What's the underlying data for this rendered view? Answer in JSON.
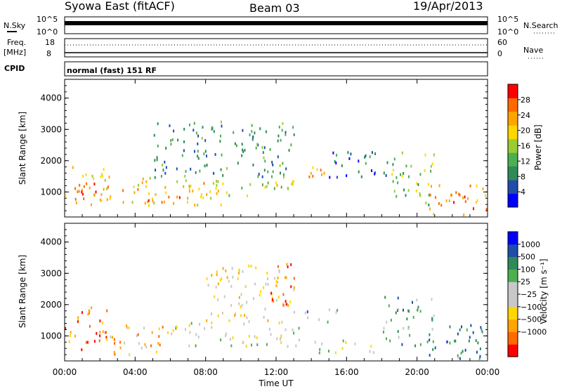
{
  "header": {
    "title": "Syowa East (fitACF)",
    "beam": "Beam 03",
    "date": "19/Apr/2013"
  },
  "panels": {
    "nsky": {
      "label": "N.Sky",
      "left_ticks": [
        "10^5",
        "10^0"
      ],
      "right_ticks": [
        "10^5",
        "10^0"
      ],
      "right_label": "N.Search"
    },
    "freq": {
      "label_line1": "Freq.",
      "label_line2": "[MHz]",
      "left_ticks": [
        "18",
        "8"
      ],
      "right_ticks": [
        "60",
        "0"
      ],
      "right_label": "Nave"
    },
    "cpid": {
      "label": "CPID",
      "text": "normal (fast) 151 RF"
    }
  },
  "colors": {
    "power_scale": [
      "#0000ff",
      "#1f4ea8",
      "#2e8b57",
      "#4caf50",
      "#9acd32",
      "#ffd700",
      "#ffa500",
      "#ff6a00",
      "#ff0000"
    ],
    "velocity_scale": [
      "#ff0000",
      "#ff6a00",
      "#ffa500",
      "#ffd700",
      "#c8c8c8",
      "#c8c8c8",
      "#4caf50",
      "#2e8b57",
      "#1f4ea8",
      "#0000ff"
    ]
  },
  "chart_data": [
    {
      "type": "heatmap",
      "name": "power",
      "ylabel": "Slant Range [km]",
      "yticks": [
        1000,
        2000,
        3000,
        4000
      ],
      "ylim": [
        200,
        4600
      ],
      "xticks": [
        "00:00",
        "04:00",
        "08:00",
        "12:00",
        "16:00",
        "20:00",
        "00:00"
      ],
      "colorbar": {
        "label": "Power [dB]",
        "ticks": [
          4,
          8,
          12,
          16,
          20,
          24,
          28
        ],
        "range": [
          0,
          32
        ]
      },
      "regions": [
        {
          "t0": 0.0,
          "t1": 2.5,
          "r0": 500,
          "r1": 2000,
          "level": 0.7
        },
        {
          "t0": 0.7,
          "t1": 1.9,
          "r0": 700,
          "r1": 1300,
          "level": 0.95
        },
        {
          "t0": 2.5,
          "t1": 9.0,
          "r0": 600,
          "r1": 1500,
          "level": 0.62
        },
        {
          "t0": 4.0,
          "t1": 7.0,
          "r0": 700,
          "r1": 900,
          "level": 0.9
        },
        {
          "t0": 8.0,
          "t1": 13.0,
          "r0": 900,
          "r1": 1500,
          "level": 0.5
        },
        {
          "t0": 5.0,
          "t1": 13.0,
          "r0": 1500,
          "r1": 3300,
          "level": 0.3
        },
        {
          "t0": 13.5,
          "t1": 15.5,
          "r0": 1400,
          "r1": 1900,
          "level": 0.8
        },
        {
          "t0": 15.0,
          "t1": 18.5,
          "r0": 1500,
          "r1": 2400,
          "level": 0.25
        },
        {
          "t0": 18.5,
          "t1": 21.0,
          "r0": 600,
          "r1": 2300,
          "level": 0.45
        },
        {
          "t0": 20.5,
          "t1": 24.0,
          "r0": 300,
          "r1": 1300,
          "level": 0.75
        }
      ]
    },
    {
      "type": "heatmap",
      "name": "velocity",
      "ylabel": "Slant Range [km]",
      "yticks": [
        1000,
        2000,
        3000,
        4000
      ],
      "ylim": [
        200,
        4600
      ],
      "xticks": [
        "00:00",
        "04:00",
        "08:00",
        "12:00",
        "16:00",
        "20:00",
        "00:00"
      ],
      "xlabel": "Time UT",
      "colorbar": {
        "label": "Velocity [m s⁻¹]",
        "ticks": [
          "1000",
          "500",
          "100",
          "25",
          "−25",
          "−100",
          "−500",
          "−1000"
        ]
      },
      "regions": [
        {
          "t0": 0.0,
          "t1": 2.5,
          "r0": 500,
          "r1": 2000,
          "level": 0.2
        },
        {
          "t0": 2.5,
          "t1": 6.0,
          "r0": 400,
          "r1": 1400,
          "level": 0.3
        },
        {
          "t0": 6.0,
          "t1": 13.5,
          "r0": 700,
          "r1": 1500,
          "level": 0.5
        },
        {
          "t0": 8.0,
          "t1": 13.0,
          "r0": 1500,
          "r1": 3300,
          "level": 0.4
        },
        {
          "t0": 11.5,
          "t1": 13.0,
          "r0": 2000,
          "r1": 3400,
          "level": 0.15
        },
        {
          "t0": 13.5,
          "t1": 15.5,
          "r0": 1400,
          "r1": 1900,
          "level": 0.65
        },
        {
          "t0": 14.0,
          "t1": 18.0,
          "r0": 500,
          "r1": 900,
          "level": 0.5
        },
        {
          "t0": 18.0,
          "t1": 21.0,
          "r0": 700,
          "r1": 2300,
          "level": 0.7
        },
        {
          "t0": 20.5,
          "t1": 24.0,
          "r0": 300,
          "r1": 1400,
          "level": 0.75
        }
      ]
    }
  ]
}
